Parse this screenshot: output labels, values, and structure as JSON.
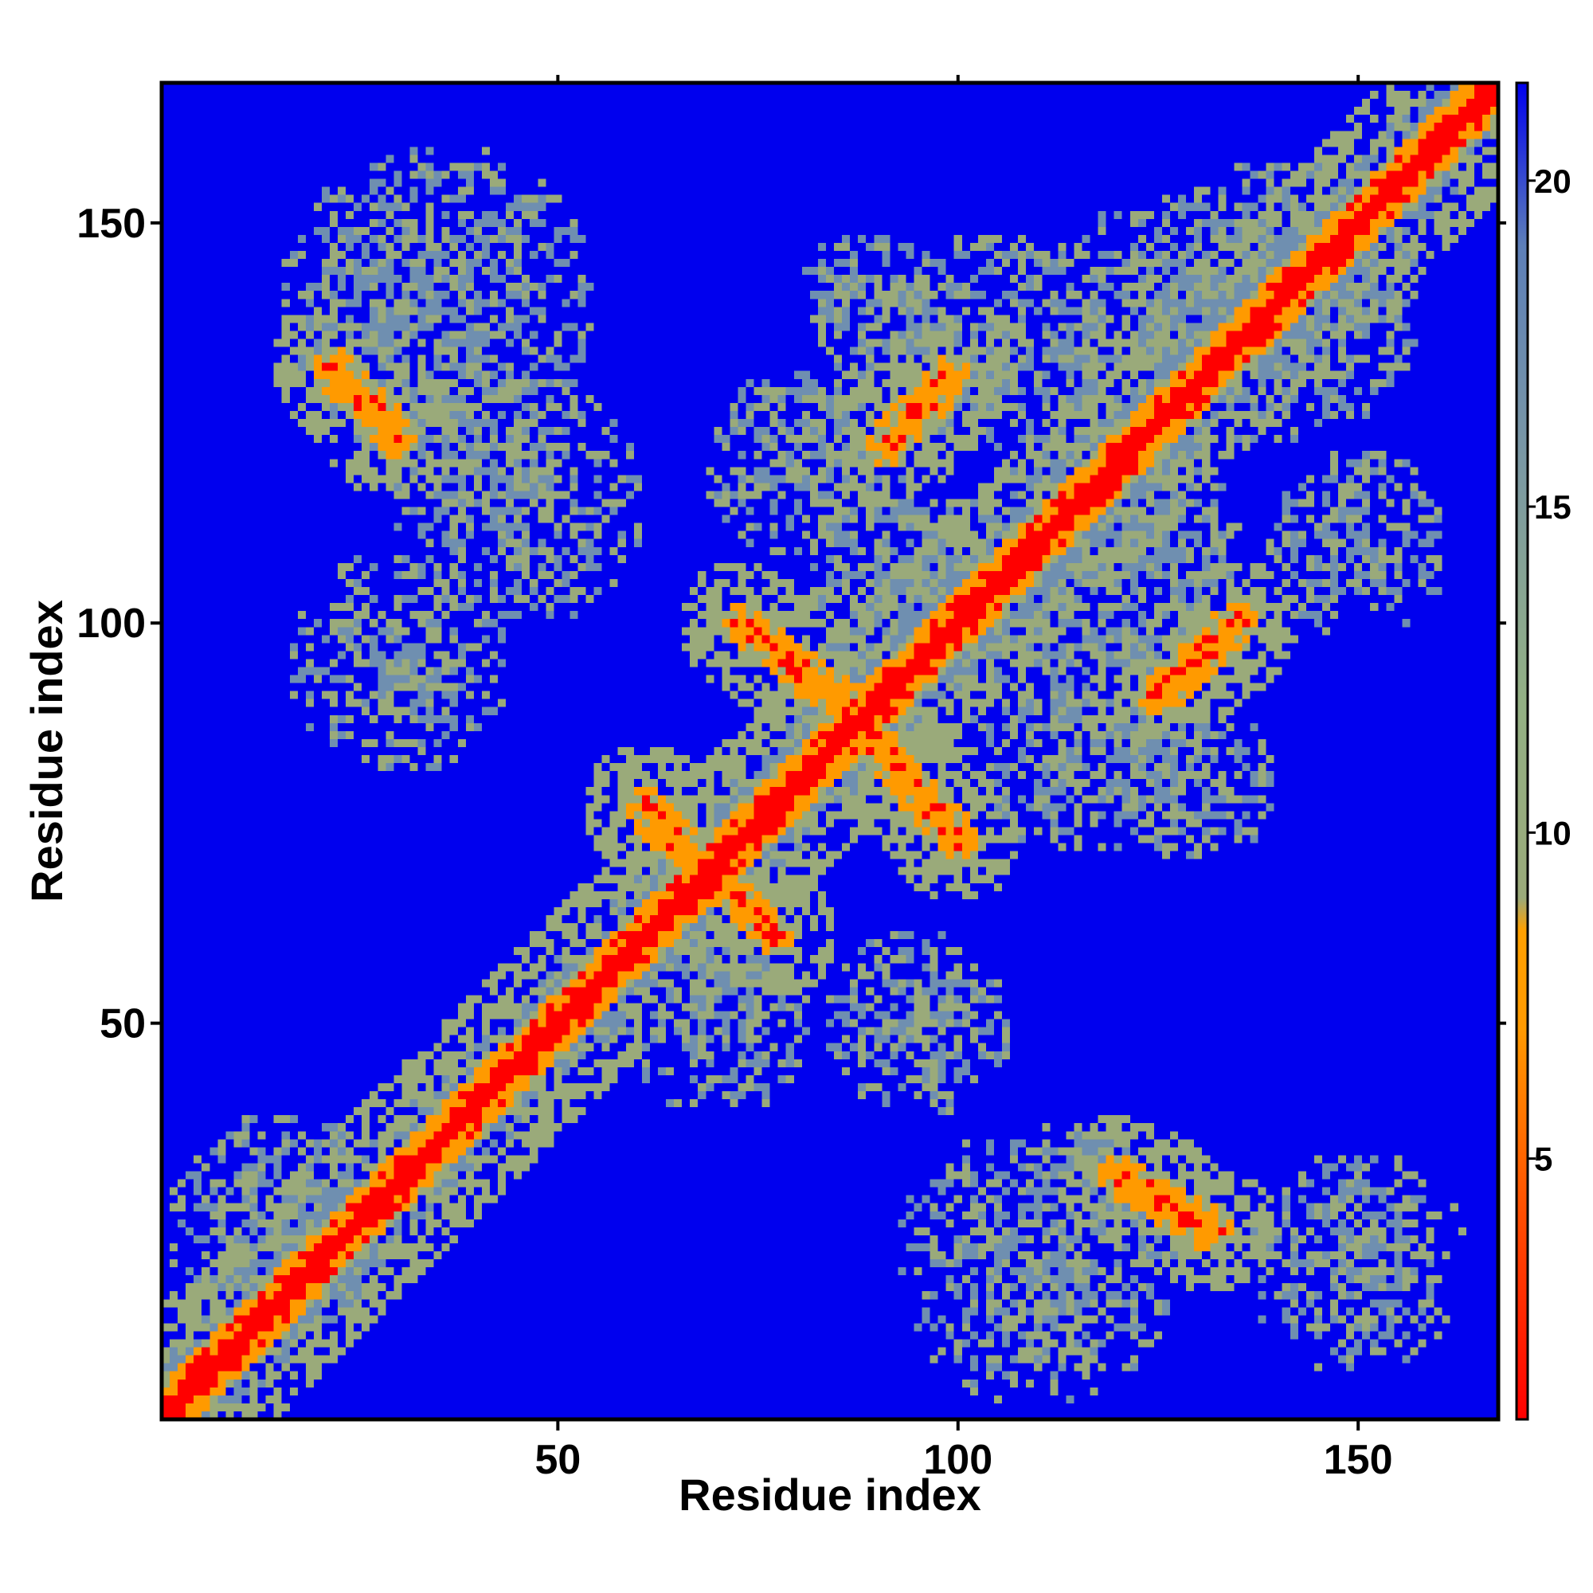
{
  "chart_data": {
    "type": "heatmap",
    "title": "",
    "xlabel": "Residue index",
    "ylabel": "Residue index",
    "x_range": [
      1,
      167
    ],
    "y_range": [
      1,
      167
    ],
    "xticks": [
      50,
      100,
      150
    ],
    "yticks": [
      50,
      100,
      150
    ],
    "colorbar": {
      "range": [
        1,
        21.5
      ],
      "ticks": [
        5,
        10,
        15,
        20
      ],
      "stops": [
        {
          "value": 1,
          "color": "#ff0000"
        },
        {
          "value": 4,
          "color": "#ff4a00"
        },
        {
          "value": 7,
          "color": "#ff9a00"
        },
        {
          "value": 8.5,
          "color": "#ffa000"
        },
        {
          "value": 9,
          "color": "#9aaa7a"
        },
        {
          "value": 12,
          "color": "#93b084"
        },
        {
          "value": 16,
          "color": "#7896a6"
        },
        {
          "value": 19,
          "color": "#5d7fb8"
        },
        {
          "value": 21.5,
          "color": "#0000ee"
        }
      ]
    },
    "colors": {
      "background": "#0000ee",
      "near": "#ff0000",
      "close": "#ff9a00",
      "mid": "#9aaa7a",
      "far": "#6f8fb0"
    },
    "contact_regions": [
      {
        "x": [
          1,
          167
        ],
        "y": [
          1,
          167
        ],
        "kind": "diagonal",
        "width": 2.5
      },
      {
        "x": [
          22,
          30
        ],
        "y": [
          132,
          123
        ],
        "kind": "anti",
        "width": 2
      },
      {
        "x": [
          61,
          66
        ],
        "y": [
          77,
          71
        ],
        "kind": "anti",
        "width": 2
      },
      {
        "x": [
          70,
          77
        ],
        "y": [
          68,
          61
        ],
        "kind": "anti",
        "width": 2
      },
      {
        "x": [
          73,
          88
        ],
        "y": [
          100,
          88
        ],
        "kind": "anti",
        "width": 2
      },
      {
        "x": [
          87,
          100
        ],
        "y": [
          88,
          73
        ],
        "kind": "anti",
        "width": 2
      },
      {
        "x": [
          91,
          99
        ],
        "y": [
          122,
          131
        ],
        "kind": "parallel",
        "width": 2
      },
      {
        "x": [
          120,
          132
        ],
        "y": [
          31,
          24
        ],
        "kind": "anti",
        "width": 2
      },
      {
        "x": [
          125,
          135
        ],
        "y": [
          91,
          100
        ],
        "kind": "parallel",
        "width": 2
      }
    ]
  }
}
